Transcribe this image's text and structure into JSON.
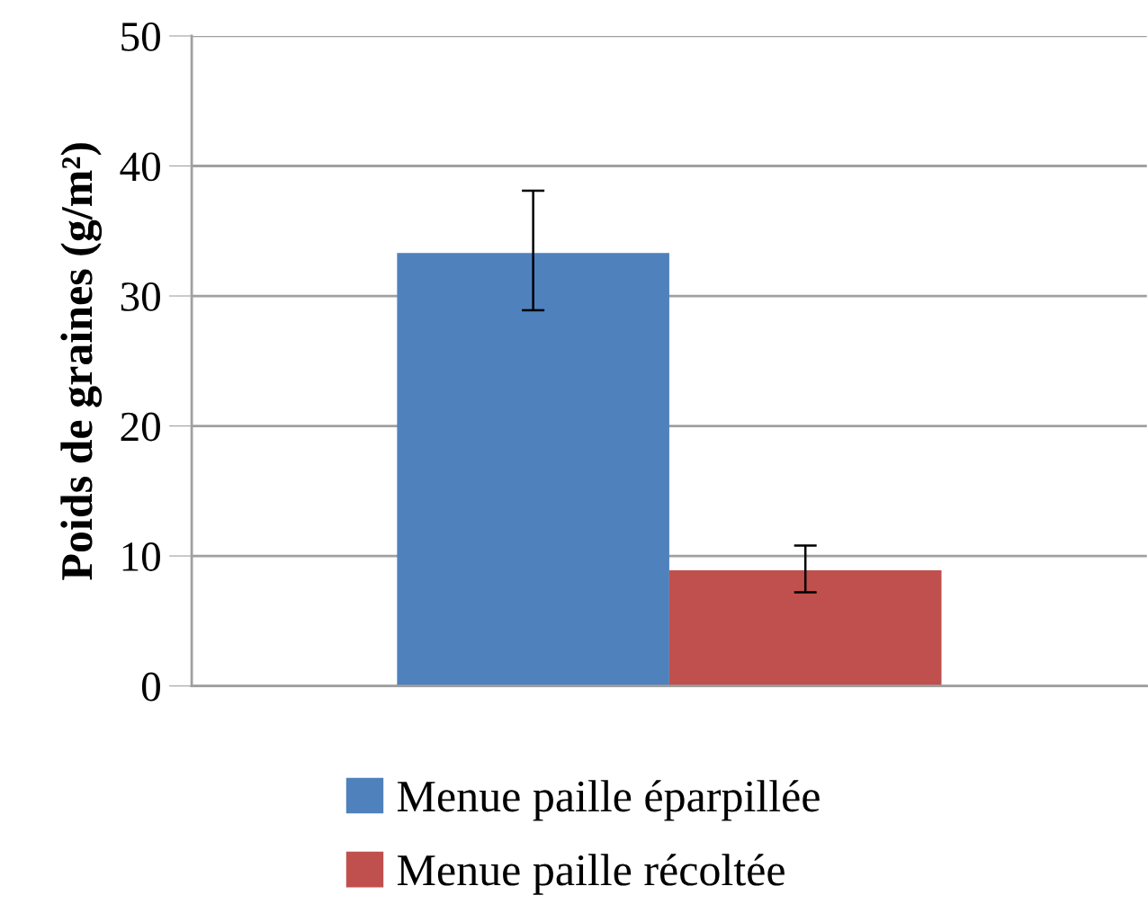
{
  "chart_data": {
    "type": "bar",
    "ylabel": "Poids de graines (g/m²)",
    "categories": [
      null
    ],
    "series": [
      {
        "name": "Menue paille éparpillée",
        "color": "#4f81bd",
        "values": [
          33.3
        ],
        "errors": [
          [
            28.9,
            38.1
          ]
        ]
      },
      {
        "name": "Menue paille récoltée",
        "color": "#c0504d",
        "values": [
          8.9
        ],
        "errors": [
          [
            7.2,
            10.8
          ]
        ]
      }
    ],
    "ylim": [
      0,
      50
    ],
    "yticks": [
      0,
      10,
      20,
      30,
      40,
      50
    ],
    "grid": "y",
    "legend": "bottom"
  }
}
